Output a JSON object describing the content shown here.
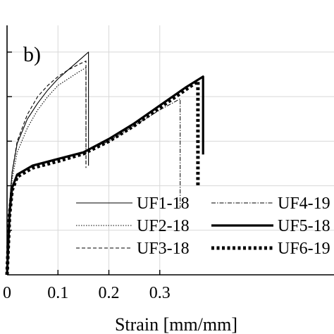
{
  "chart_data": {
    "type": "line",
    "panel_label": "b)",
    "xlabel": "Strain [mm/mm]",
    "ylabel": "",
    "xlim": [
      0,
      0.4
    ],
    "ylim": [
      0,
      5.6
    ],
    "x_ticks": [
      0,
      0.1,
      0.2,
      0.3
    ],
    "x_tick_labels": [
      "0",
      "0.1",
      "0.2",
      "0.3"
    ],
    "y_ticks": [
      1,
      2,
      3,
      4,
      5
    ],
    "y_tick_labels": [
      "",
      "",
      "",
      "",
      ""
    ],
    "grid": true,
    "legend_position": "bottom-right",
    "series": [
      {
        "name": "UF1-18",
        "style": "solid-thin",
        "x": [
          0,
          0.005,
          0.01,
          0.02,
          0.04,
          0.06,
          0.08,
          0.1,
          0.12,
          0.14,
          0.155,
          0.16,
          0.16
        ],
        "y": [
          0,
          1.6,
          2.3,
          2.95,
          3.5,
          3.85,
          4.15,
          4.4,
          4.6,
          4.8,
          4.95,
          5.0,
          2.45
        ]
      },
      {
        "name": "UF2-18",
        "style": "dotted-thin",
        "x": [
          0,
          0.005,
          0.01,
          0.02,
          0.04,
          0.06,
          0.08,
          0.1,
          0.12,
          0.14,
          0.155,
          0.155
        ],
        "y": [
          0,
          1.5,
          2.15,
          2.75,
          3.3,
          3.7,
          4.0,
          4.25,
          4.4,
          4.55,
          4.65,
          2.5
        ]
      },
      {
        "name": "UF3-18",
        "style": "dashed-thin",
        "x": [
          0,
          0.005,
          0.01,
          0.02,
          0.04,
          0.06,
          0.08,
          0.1,
          0.12,
          0.14,
          0.155,
          0.155
        ],
        "y": [
          0,
          1.6,
          2.3,
          3.0,
          3.6,
          4.0,
          4.25,
          4.45,
          4.6,
          4.72,
          4.8,
          2.4
        ]
      },
      {
        "name": "UF4-19",
        "style": "dashdot-thin",
        "x": [
          0,
          0.005,
          0.01,
          0.02,
          0.05,
          0.1,
          0.15,
          0.2,
          0.25,
          0.3,
          0.34,
          0.34
        ],
        "y": [
          0,
          1.4,
          1.95,
          2.25,
          2.45,
          2.6,
          2.75,
          3.0,
          3.35,
          3.7,
          3.95,
          1.5
        ]
      },
      {
        "name": "UF5-18",
        "style": "solid-thick",
        "x": [
          0,
          0.005,
          0.01,
          0.02,
          0.05,
          0.1,
          0.15,
          0.2,
          0.25,
          0.3,
          0.35,
          0.385,
          0.385
        ],
        "y": [
          0,
          1.4,
          1.95,
          2.25,
          2.45,
          2.6,
          2.75,
          3.05,
          3.4,
          3.8,
          4.2,
          4.45,
          2.7
        ]
      },
      {
        "name": "UF6-19",
        "style": "dotted-thick",
        "x": [
          0,
          0.005,
          0.01,
          0.02,
          0.05,
          0.1,
          0.15,
          0.2,
          0.25,
          0.3,
          0.35,
          0.375,
          0.375
        ],
        "y": [
          0,
          1.35,
          1.9,
          2.2,
          2.4,
          2.55,
          2.72,
          3.0,
          3.35,
          3.75,
          4.15,
          4.35,
          2.0
        ]
      }
    ]
  }
}
